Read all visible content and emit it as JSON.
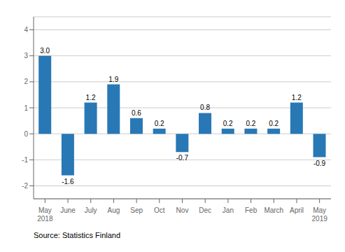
{
  "chart_data": {
    "type": "bar",
    "categories": [
      "May\n2018",
      "June",
      "July",
      "Aug",
      "Sep",
      "Oct",
      "Nov",
      "Dec",
      "Jan",
      "Feb",
      "March",
      "April",
      "May\n2019"
    ],
    "values": [
      3.0,
      -1.6,
      1.2,
      1.9,
      0.6,
      0.2,
      -0.7,
      0.8,
      0.2,
      0.2,
      0.2,
      1.2,
      -0.9
    ],
    "value_labels": [
      "3.0",
      "-1.6",
      "1.2",
      "1.9",
      "0.6",
      "0.2",
      "-0.7",
      "0.8",
      "0.2",
      "0.2",
      "0.2",
      "1.2",
      "-0.9"
    ],
    "data_labels": true,
    "color": "#2878b5",
    "ylim": [
      -2.5,
      4.5
    ],
    "yticks": [
      -2,
      -1,
      0,
      1,
      2,
      3,
      4
    ],
    "grid": true,
    "source": "Source: Statistics Finland"
  }
}
